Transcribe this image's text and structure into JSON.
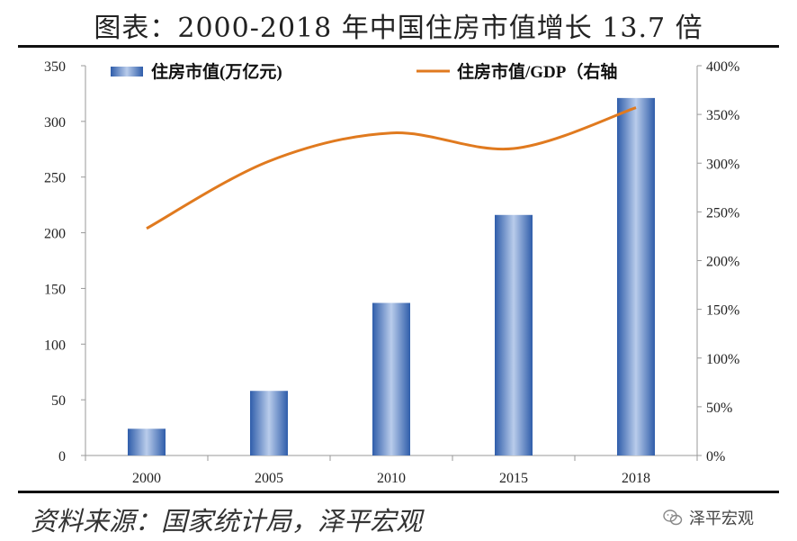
{
  "title": "图表：2000-2018 年中国住房市值增长 13.7 倍",
  "source": "资料来源：国家统计局，泽平宏观",
  "brand": {
    "name": "泽平宏观",
    "icon": "wechat-icon"
  },
  "chart_data": {
    "type": "bar",
    "categories": [
      "2000",
      "2005",
      "2010",
      "2015",
      "2018"
    ],
    "series": [
      {
        "name": "住房市值(万亿元)",
        "type": "bar",
        "axis": "left",
        "values": [
          24,
          58,
          137,
          216,
          321
        ],
        "color": "#4472C4"
      },
      {
        "name": "住房市值/GDP（右轴",
        "type": "line",
        "axis": "right",
        "values": [
          233,
          302,
          331,
          315,
          357
        ],
        "color": "#E07A1F"
      }
    ],
    "y_left": {
      "min": 0,
      "max": 350,
      "ticks": [
        "0",
        "50",
        "100",
        "150",
        "200",
        "250",
        "300",
        "350"
      ]
    },
    "y_right": {
      "min": 0,
      "max": 400,
      "ticks": [
        "0%",
        "50%",
        "100%",
        "150%",
        "200%",
        "250%",
        "300%",
        "350%",
        "400%"
      ]
    },
    "legend_position": "top"
  }
}
